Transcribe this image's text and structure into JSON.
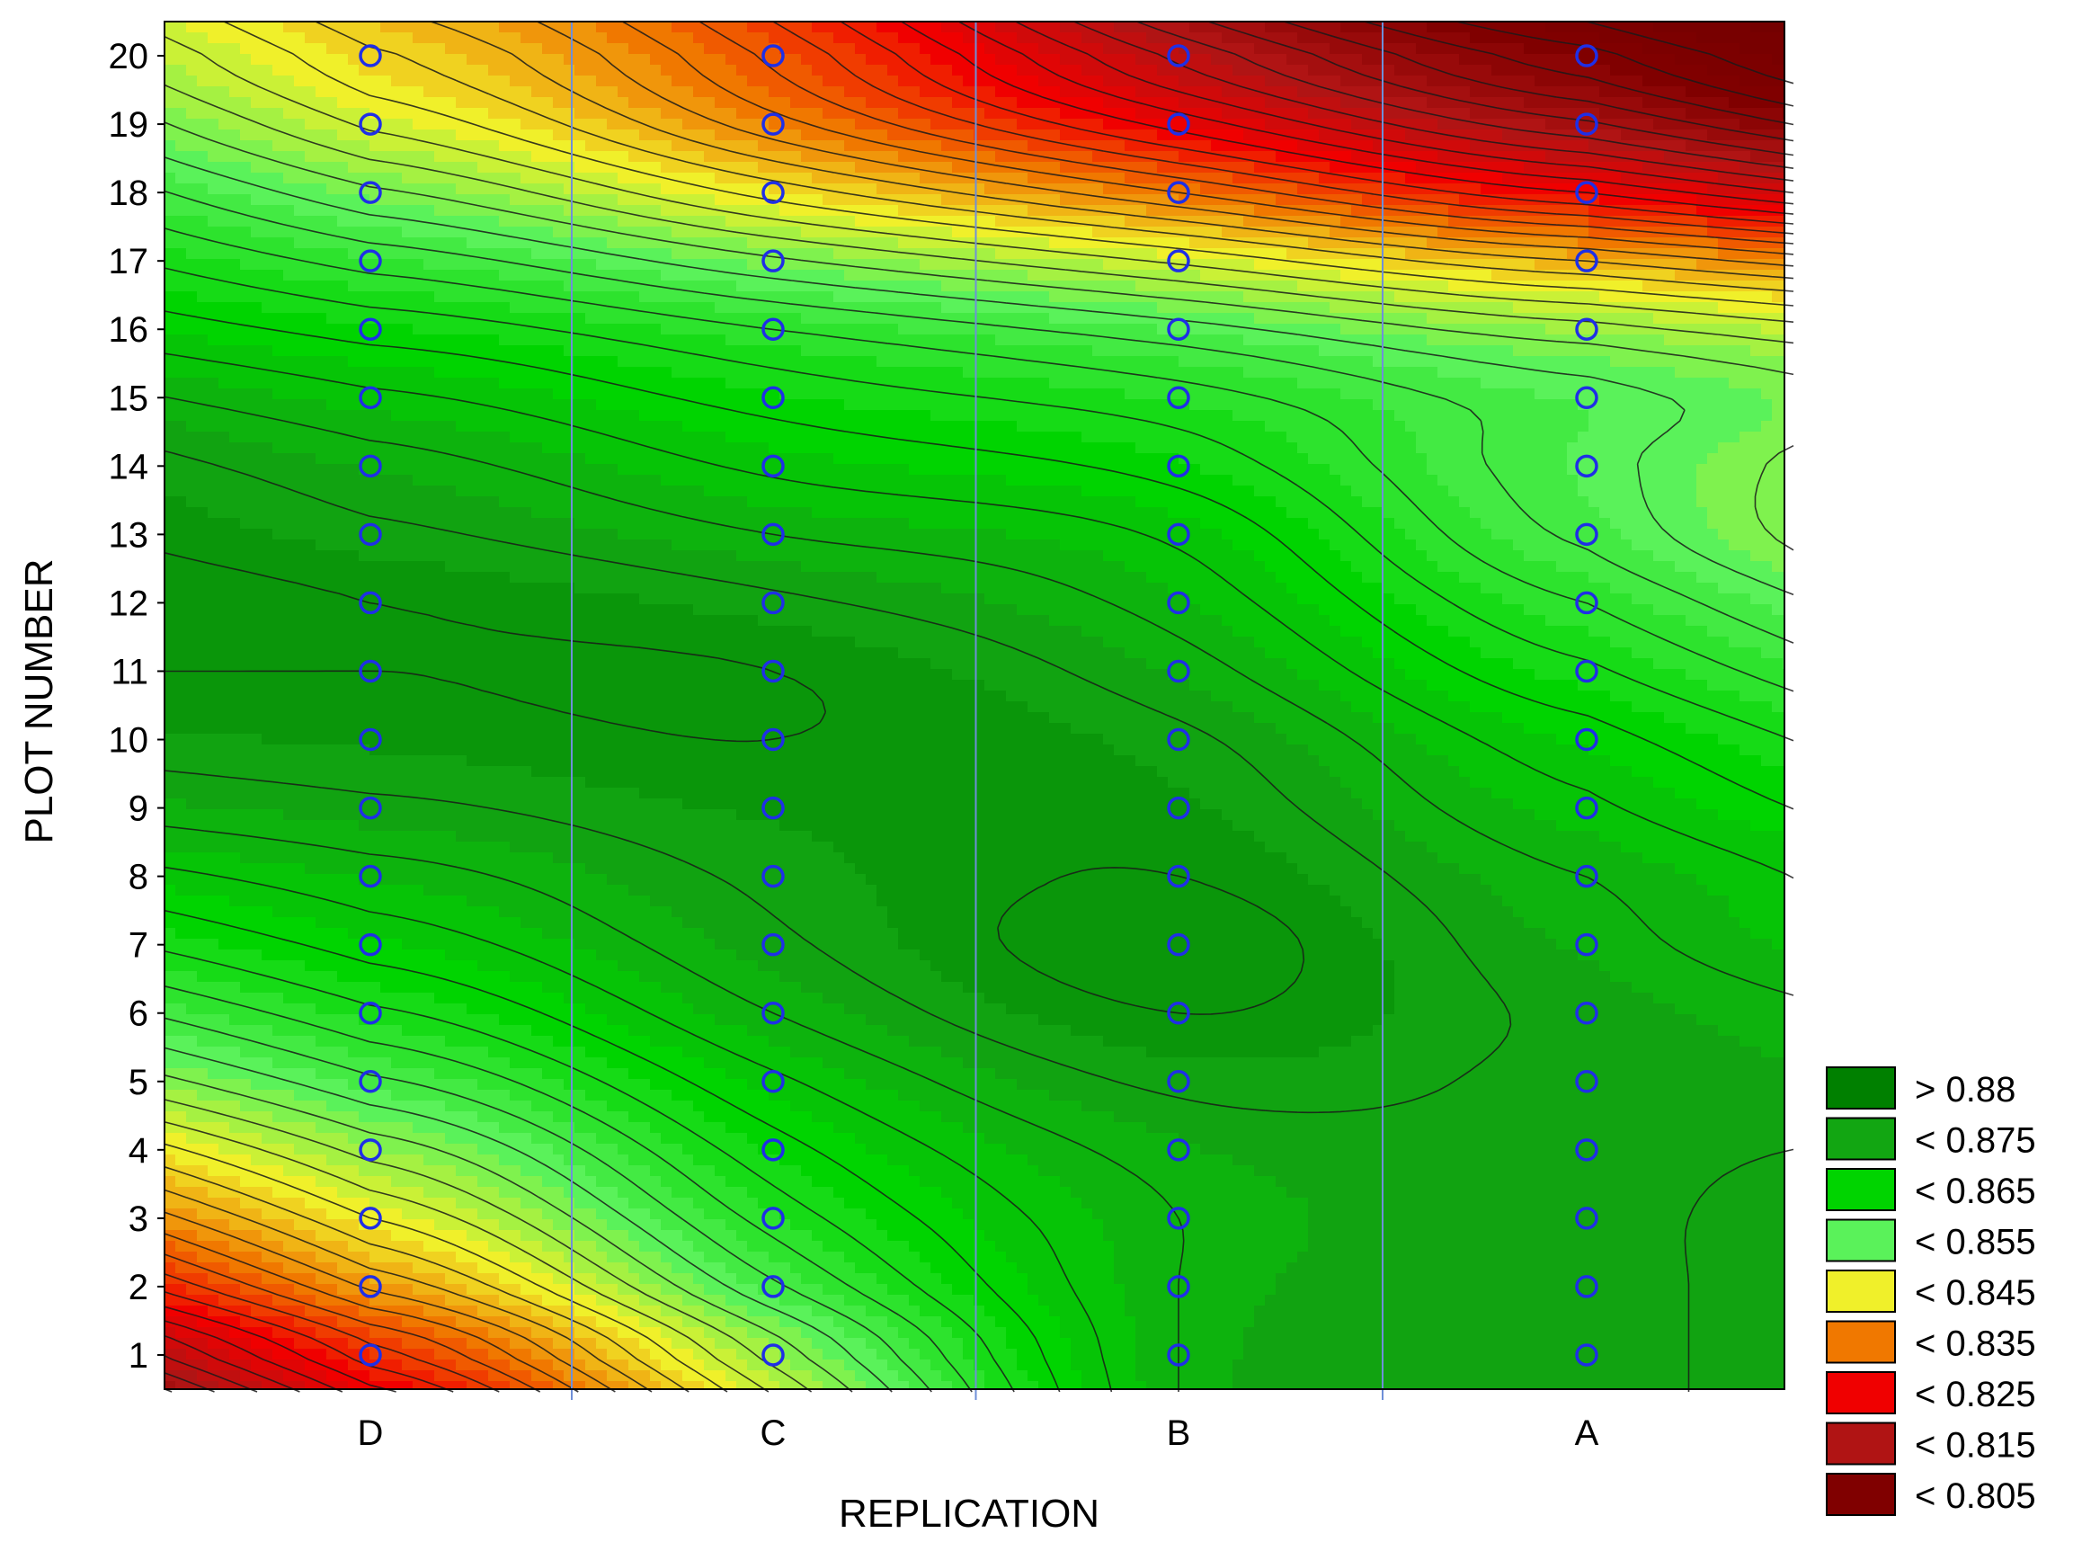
{
  "chart_data": {
    "type": "heatmap",
    "subtype": "contour",
    "title": "",
    "xlabel": "REPLICATION",
    "ylabel": "PLOT NUMBER",
    "x_categories": [
      "D",
      "C",
      "B",
      "A"
    ],
    "y_ticks": [
      1,
      2,
      3,
      4,
      5,
      6,
      7,
      8,
      9,
      10,
      11,
      12,
      13,
      14,
      15,
      16,
      17,
      18,
      19,
      20
    ],
    "ylim": [
      0.5,
      20.5
    ],
    "grid": false,
    "legend_position": "bottom-right",
    "marker_style": "blue open circle",
    "marker_color": "#1f2fe6",
    "legend": [
      {
        "label": "> 0.88",
        "color": "#008000"
      },
      {
        "label": "< 0.875",
        "color": "#12a612"
      },
      {
        "label": "< 0.865",
        "color": "#00d400"
      },
      {
        "label": "< 0.855",
        "color": "#5af25a"
      },
      {
        "label": "< 0.845",
        "color": "#f0f02a"
      },
      {
        "label": "< 0.835",
        "color": "#f07800"
      },
      {
        "label": "< 0.825",
        "color": "#f00000"
      },
      {
        "label": "< 0.815",
        "color": "#b01414"
      },
      {
        "label": "< 0.805",
        "color": "#800000"
      }
    ],
    "grid_values": {
      "D": [
        0.834,
        0.843,
        0.85,
        0.856,
        0.862,
        0.867,
        0.871,
        0.874,
        0.877,
        0.879,
        0.88,
        0.88,
        0.878,
        0.876,
        0.873,
        0.869,
        0.864,
        0.858,
        0.852,
        0.848
      ],
      "C": [
        0.856,
        0.862,
        0.866,
        0.869,
        0.872,
        0.875,
        0.877,
        0.878,
        0.879,
        0.88,
        0.88,
        0.878,
        0.875,
        0.872,
        0.869,
        0.865,
        0.858,
        0.849,
        0.841,
        0.837
      ],
      "B": [
        0.875,
        0.875,
        0.875,
        0.876,
        0.878,
        0.88,
        0.881,
        0.88,
        0.879,
        0.878,
        0.876,
        0.874,
        0.872,
        0.869,
        0.866,
        0.861,
        0.852,
        0.84,
        0.829,
        0.822
      ],
      "A": [
        0.877,
        0.877,
        0.877,
        0.877,
        0.877,
        0.877,
        0.876,
        0.875,
        0.873,
        0.871,
        0.868,
        0.865,
        0.862,
        0.861,
        0.861,
        0.856,
        0.845,
        0.83,
        0.818,
        0.811
      ]
    }
  }
}
